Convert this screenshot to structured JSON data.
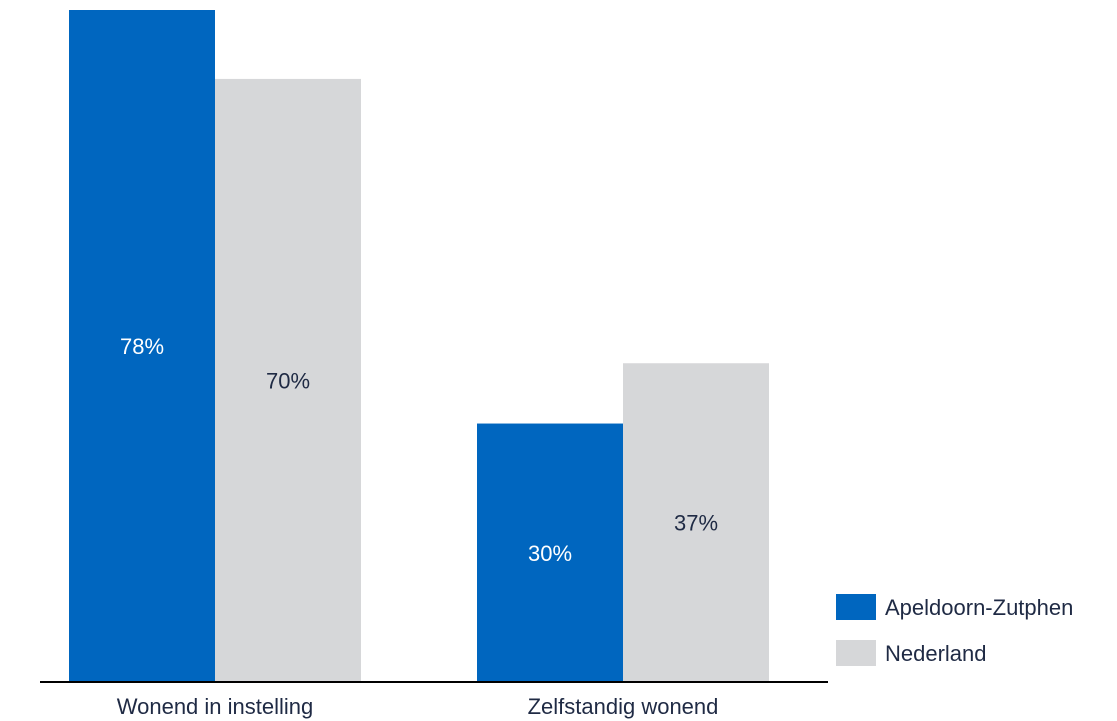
{
  "chart_data": {
    "type": "bar",
    "title": "",
    "xlabel": "",
    "ylabel": "",
    "categories": [
      "Wonend in instelling",
      "Zelfstandig wonend"
    ],
    "series": [
      {
        "name": "Apeldoorn-Zutphen",
        "values": [
          78,
          30
        ],
        "labels": [
          "78%",
          "30%"
        ],
        "color": "#0066bf",
        "label_color": "#ffffff"
      },
      {
        "name": "Nederland",
        "values": [
          70,
          37
        ],
        "labels": [
          "70%",
          "37%"
        ],
        "color": "#d6d7d9",
        "label_color": "#1f2a44"
      }
    ],
    "ylim": [
      0,
      78
    ],
    "grid": false,
    "legend_position": "bottom-right",
    "axis_color": "#000000"
  }
}
